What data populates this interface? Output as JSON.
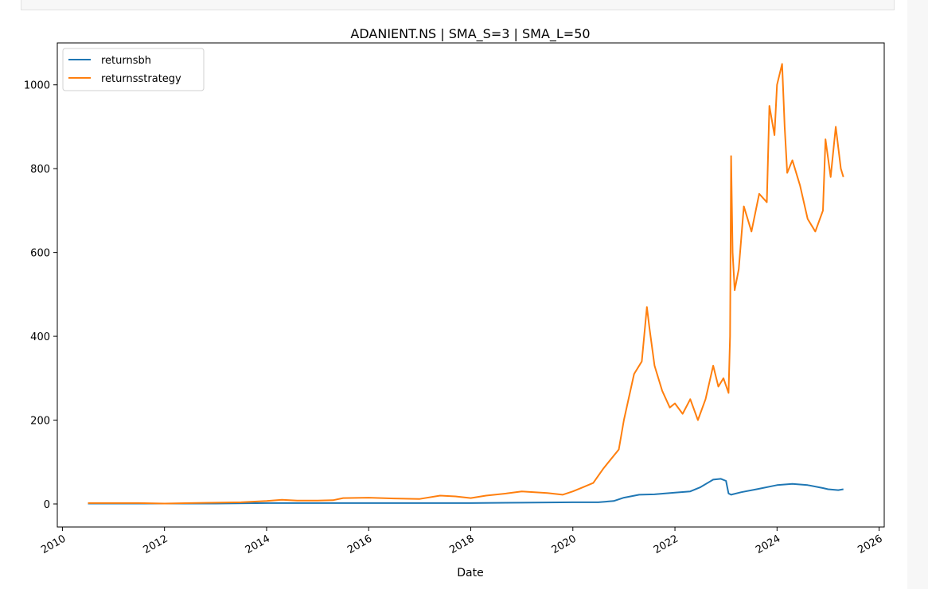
{
  "chart_data": {
    "type": "line",
    "title": "ADANIENT.NS | SMA_S=3 | SMA_L=50",
    "xlabel": "Date",
    "ylabel": "",
    "xlim": [
      2009.9,
      2026.1
    ],
    "ylim": [
      -55,
      1100
    ],
    "x_ticks": [
      "2010",
      "2012",
      "2014",
      "2016",
      "2018",
      "2020",
      "2022",
      "2024",
      "2026"
    ],
    "y_ticks": [
      0,
      200,
      400,
      600,
      800,
      1000
    ],
    "grid": false,
    "legend_position": "upper-left",
    "series": [
      {
        "name": "returnsbh",
        "color": "#1f77b4",
        "x": [
          2010.5,
          2011.0,
          2012.0,
          2013.0,
          2014.0,
          2015.0,
          2016.0,
          2017.0,
          2018.0,
          2019.0,
          2020.0,
          2020.5,
          2020.8,
          2021.0,
          2021.3,
          2021.6,
          2022.0,
          2022.3,
          2022.5,
          2022.75,
          2022.9,
          2023.0,
          2023.05,
          2023.1,
          2023.3,
          2023.6,
          2024.0,
          2024.3,
          2024.6,
          2024.9,
          2025.0,
          2025.2,
          2025.3
        ],
        "y": [
          1,
          1,
          1,
          1,
          2,
          2,
          2,
          2,
          2,
          3,
          4,
          4,
          7,
          15,
          22,
          23,
          27,
          30,
          40,
          58,
          60,
          55,
          25,
          22,
          28,
          35,
          45,
          48,
          45,
          38,
          35,
          33,
          35
        ]
      },
      {
        "name": "returnsstrategy",
        "color": "#ff7f0e",
        "x": [
          2010.5,
          2011.0,
          2011.5,
          2012.0,
          2012.5,
          2013.0,
          2013.5,
          2014.0,
          2014.3,
          2014.6,
          2015.0,
          2015.3,
          2015.5,
          2016.0,
          2016.5,
          2017.0,
          2017.4,
          2017.7,
          2018.0,
          2018.3,
          2018.7,
          2019.0,
          2019.5,
          2019.8,
          2020.0,
          2020.2,
          2020.4,
          2020.6,
          2020.9,
          2021.0,
          2021.2,
          2021.35,
          2021.45,
          2021.5,
          2021.6,
          2021.75,
          2021.9,
          2022.0,
          2022.15,
          2022.3,
          2022.45,
          2022.6,
          2022.75,
          2022.85,
          2022.95,
          2023.05,
          2023.08,
          2023.1,
          2023.13,
          2023.17,
          2023.25,
          2023.35,
          2023.5,
          2023.65,
          2023.8,
          2023.85,
          2023.95,
          2024.0,
          2024.1,
          2024.15,
          2024.2,
          2024.3,
          2024.45,
          2024.6,
          2024.75,
          2024.9,
          2024.95,
          2025.05,
          2025.15,
          2025.25,
          2025.3
        ],
        "y": [
          2,
          2,
          2,
          1,
          2,
          3,
          4,
          7,
          10,
          8,
          8,
          9,
          14,
          15,
          13,
          12,
          20,
          18,
          14,
          20,
          25,
          30,
          26,
          22,
          30,
          40,
          50,
          85,
          130,
          200,
          310,
          340,
          470,
          420,
          330,
          270,
          230,
          240,
          215,
          250,
          200,
          250,
          330,
          280,
          300,
          265,
          400,
          830,
          600,
          510,
          560,
          710,
          650,
          740,
          720,
          950,
          880,
          1000,
          1050,
          900,
          790,
          820,
          760,
          680,
          650,
          700,
          870,
          780,
          900,
          800,
          780
        ]
      }
    ]
  }
}
